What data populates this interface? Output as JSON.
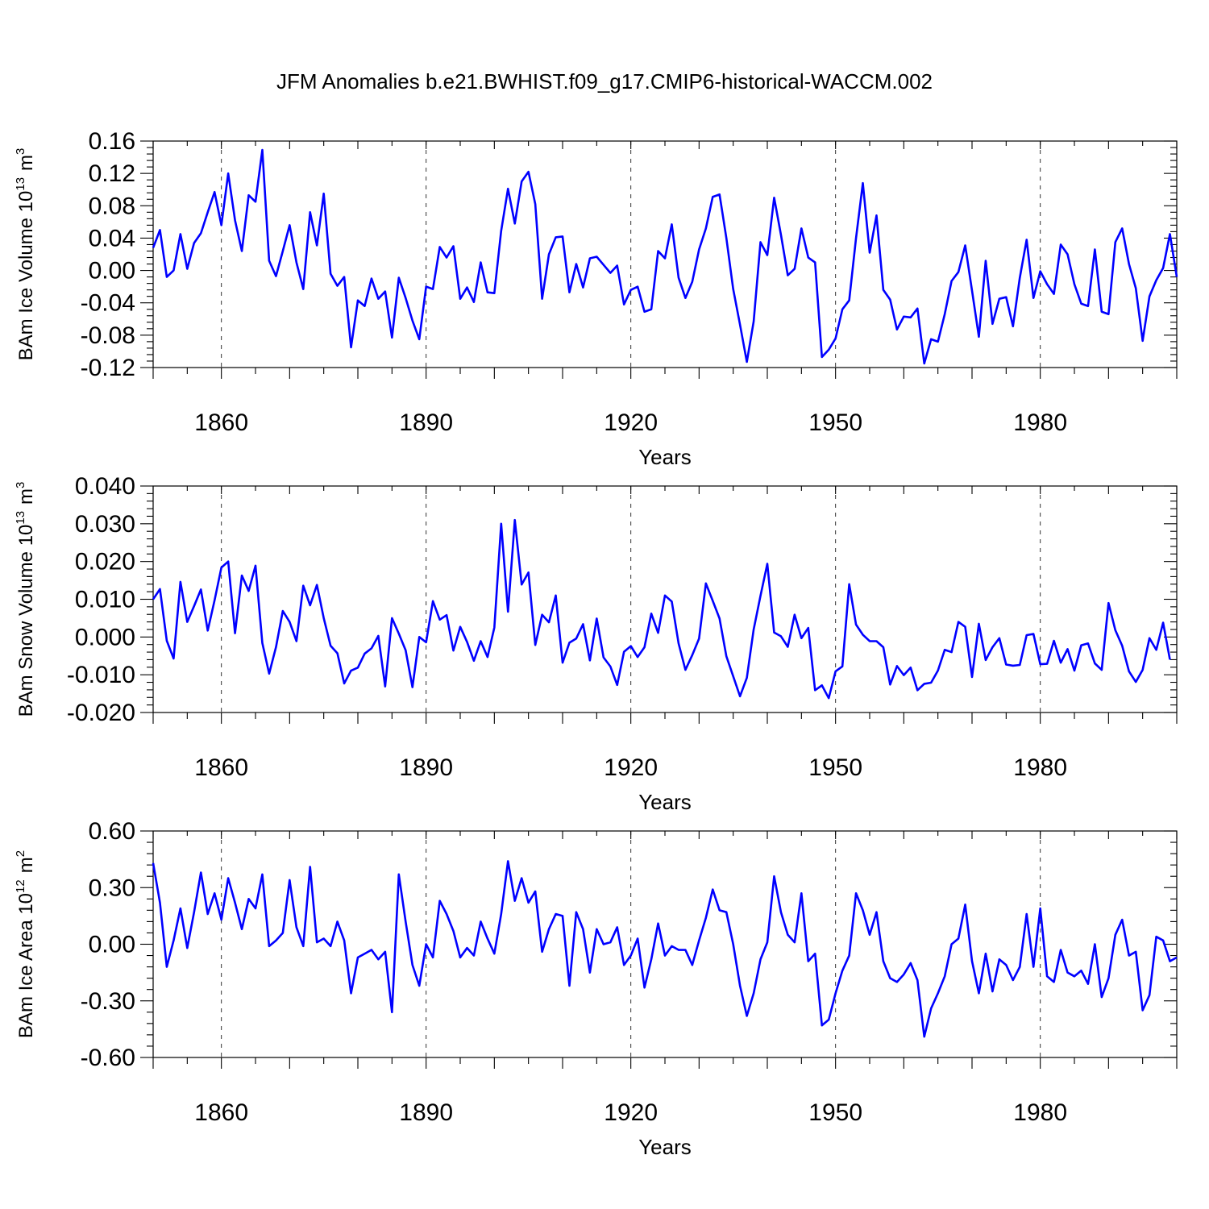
{
  "title": "JFM Anomalies b.e21.BWHIST.f09_g17.CMIP6-historical-WACCM.002",
  "chart_data": [
    {
      "type": "line",
      "ylabel_main": "BAm Ice Volume 10",
      "ylabel_exp": "13",
      "ylabel_unit": "m",
      "ylabel_unit_exp": "3",
      "xlabel": "Years",
      "xlim": [
        1850,
        2000
      ],
      "ylim": [
        -0.12,
        0.16
      ],
      "yticks": [
        0.16,
        0.12,
        0.08,
        0.04,
        0.0,
        -0.04,
        -0.08,
        -0.12
      ],
      "ytick_labels": [
        "0.16",
        "0.12",
        "0.08",
        "0.04",
        "0.00",
        "-0.04",
        "-0.08",
        "-0.12"
      ],
      "xticks": [
        1860,
        1890,
        1920,
        1950,
        1980
      ],
      "xtick_labels": [
        "1860",
        "1890",
        "1920",
        "1950",
        "1980"
      ],
      "x_start": 1850,
      "values": [
        0.028,
        0.05,
        -0.008,
        0.0,
        0.045,
        0.002,
        0.034,
        0.046,
        0.072,
        0.097,
        0.056,
        0.12,
        0.062,
        0.024,
        0.093,
        0.085,
        0.149,
        0.012,
        -0.007,
        0.024,
        0.056,
        0.01,
        -0.023,
        0.072,
        0.031,
        0.095,
        -0.004,
        -0.019,
        -0.008,
        -0.095,
        -0.037,
        -0.044,
        -0.01,
        -0.035,
        -0.026,
        -0.083,
        -0.009,
        -0.034,
        -0.062,
        -0.085,
        -0.02,
        -0.023,
        0.029,
        0.016,
        0.03,
        -0.035,
        -0.021,
        -0.039,
        0.01,
        -0.027,
        -0.028,
        0.049,
        0.101,
        0.058,
        0.11,
        0.122,
        0.082,
        -0.035,
        0.02,
        0.041,
        0.042,
        -0.027,
        0.008,
        -0.021,
        0.015,
        0.017,
        0.007,
        -0.003,
        0.006,
        -0.042,
        -0.024,
        -0.02,
        -0.051,
        -0.048,
        0.024,
        0.015,
        0.057,
        -0.009,
        -0.034,
        -0.014,
        0.026,
        0.052,
        0.091,
        0.094,
        0.04,
        -0.023,
        -0.067,
        -0.113,
        -0.063,
        0.035,
        0.019,
        0.09,
        0.044,
        -0.006,
        0.002,
        0.052,
        0.016,
        0.01,
        -0.107,
        -0.098,
        -0.084,
        -0.048,
        -0.037,
        0.04,
        0.108,
        0.022,
        0.068,
        -0.024,
        -0.036,
        -0.073,
        -0.057,
        -0.058,
        -0.047,
        -0.115,
        -0.085,
        -0.088,
        -0.054,
        -0.013,
        -0.002,
        0.031,
        -0.025,
        -0.082,
        0.012,
        -0.066,
        -0.035,
        -0.033,
        -0.069,
        -0.009,
        0.038,
        -0.034,
        -0.001,
        -0.017,
        -0.029,
        0.032,
        0.02,
        -0.017,
        -0.041,
        -0.044,
        0.026,
        -0.051,
        -0.054,
        0.035,
        0.052,
        0.008,
        -0.022,
        -0.087,
        -0.032,
        -0.012,
        0.003,
        0.045,
        -0.008
      ]
    },
    {
      "type": "line",
      "ylabel_main": "BAm Snow Volume 10",
      "ylabel_exp": "13",
      "ylabel_unit": "m",
      "ylabel_unit_exp": "3",
      "xlabel": "Years",
      "xlim": [
        1850,
        2000
      ],
      "ylim": [
        -0.02,
        0.04
      ],
      "yticks": [
        0.04,
        0.03,
        0.02,
        0.01,
        0.0,
        -0.01,
        -0.02
      ],
      "ytick_labels": [
        "0.040",
        "0.030",
        "0.020",
        "0.010",
        "0.000",
        "-0.010",
        "-0.020"
      ],
      "xticks": [
        1860,
        1890,
        1920,
        1950,
        1980
      ],
      "xtick_labels": [
        "1860",
        "1890",
        "1920",
        "1950",
        "1980"
      ],
      "x_start": 1850,
      "values": [
        0.01,
        0.0127,
        -0.001,
        -0.0057,
        0.0146,
        0.004,
        0.0082,
        0.0126,
        0.0017,
        0.0097,
        0.0184,
        0.02,
        0.001,
        0.0163,
        0.0122,
        0.0189,
        -0.0016,
        -0.0097,
        -0.0027,
        0.0069,
        0.004,
        -0.0011,
        0.0136,
        0.0084,
        0.0138,
        0.005,
        -0.0023,
        -0.0043,
        -0.0123,
        -0.0089,
        -0.0081,
        -0.0044,
        -0.003,
        0.0003,
        -0.0131,
        0.005,
        0.0009,
        -0.0035,
        -0.0133,
        0.0,
        -0.0014,
        0.0095,
        0.0046,
        0.0058,
        -0.0036,
        0.0027,
        -0.0013,
        -0.0063,
        -0.0011,
        -0.0053,
        0.0025,
        0.03,
        0.0067,
        0.031,
        0.0139,
        0.0171,
        -0.0021,
        0.0059,
        0.0039,
        0.011,
        -0.0068,
        -0.0015,
        -0.0004,
        0.0034,
        -0.0062,
        0.0049,
        -0.0054,
        -0.0078,
        -0.0127,
        -0.0039,
        -0.0024,
        -0.0053,
        -0.0027,
        0.0062,
        0.0011,
        0.011,
        0.0094,
        -0.0017,
        -0.0087,
        -0.0048,
        -0.0004,
        0.0142,
        0.0096,
        0.0049,
        -0.0051,
        -0.0104,
        -0.0157,
        -0.0108,
        0.002,
        0.0109,
        0.0194,
        0.0012,
        0.0002,
        -0.0026,
        0.0059,
        -0.0003,
        0.0024,
        -0.0141,
        -0.0128,
        -0.0162,
        -0.0091,
        -0.0078,
        0.014,
        0.0033,
        0.0006,
        -0.0011,
        -0.0011,
        -0.0027,
        -0.0126,
        -0.0077,
        -0.0101,
        -0.0081,
        -0.0141,
        -0.0124,
        -0.0121,
        -0.0089,
        -0.0034,
        -0.004,
        0.004,
        0.0027,
        -0.0106,
        0.0035,
        -0.0061,
        -0.0027,
        -0.0003,
        -0.0073,
        -0.0076,
        -0.0074,
        0.0005,
        0.0008,
        -0.0072,
        -0.0071,
        -0.001,
        -0.0068,
        -0.0032,
        -0.0089,
        -0.0022,
        -0.0017,
        -0.007,
        -0.0087,
        0.009,
        0.0018,
        -0.0023,
        -0.0091,
        -0.0119,
        -0.0087,
        -0.0003,
        -0.0034,
        0.0038,
        -0.006
      ]
    },
    {
      "type": "line",
      "ylabel_main": "BAm Ice Area 10",
      "ylabel_exp": "12",
      "ylabel_unit": "m",
      "ylabel_unit_exp": "2",
      "xlabel": "Years",
      "xlim": [
        1850,
        2000
      ],
      "ylim": [
        -0.6,
        0.6
      ],
      "yticks": [
        0.6,
        0.3,
        0.0,
        -0.3,
        -0.6
      ],
      "ytick_labels": [
        "0.60",
        "0.30",
        "0.00",
        "-0.30",
        "-0.60"
      ],
      "xticks": [
        1860,
        1890,
        1920,
        1950,
        1980
      ],
      "xtick_labels": [
        "1860",
        "1890",
        "1920",
        "1950",
        "1980"
      ],
      "x_start": 1850,
      "values": [
        0.43,
        0.22,
        -0.12,
        0.02,
        0.19,
        -0.02,
        0.17,
        0.38,
        0.16,
        0.27,
        0.13,
        0.35,
        0.22,
        0.08,
        0.24,
        0.19,
        0.37,
        -0.01,
        0.02,
        0.06,
        0.34,
        0.09,
        -0.01,
        0.41,
        0.01,
        0.03,
        -0.01,
        0.12,
        0.02,
        -0.26,
        -0.07,
        -0.05,
        -0.03,
        -0.08,
        -0.04,
        -0.36,
        0.37,
        0.12,
        -0.11,
        -0.22,
        0.0,
        -0.07,
        0.23,
        0.16,
        0.07,
        -0.07,
        -0.02,
        -0.06,
        0.12,
        0.03,
        -0.05,
        0.16,
        0.44,
        0.23,
        0.35,
        0.22,
        0.28,
        -0.04,
        0.08,
        0.16,
        0.15,
        -0.22,
        0.17,
        0.08,
        -0.15,
        0.08,
        0.0,
        0.01,
        0.09,
        -0.11,
        -0.06,
        0.03,
        -0.23,
        -0.08,
        0.11,
        -0.06,
        -0.01,
        -0.03,
        -0.03,
        -0.11,
        0.02,
        0.14,
        0.29,
        0.18,
        0.17,
        0.0,
        -0.22,
        -0.38,
        -0.26,
        -0.08,
        0.01,
        0.36,
        0.17,
        0.05,
        0.01,
        0.27,
        -0.09,
        -0.05,
        -0.43,
        -0.4,
        -0.26,
        -0.14,
        -0.06,
        0.27,
        0.18,
        0.05,
        0.17,
        -0.09,
        -0.18,
        -0.2,
        -0.16,
        -0.1,
        -0.19,
        -0.49,
        -0.34,
        -0.26,
        -0.17,
        0.0,
        0.03,
        0.21,
        -0.09,
        -0.26,
        -0.05,
        -0.25,
        -0.08,
        -0.11,
        -0.19,
        -0.12,
        0.16,
        -0.12,
        0.19,
        -0.17,
        -0.2,
        -0.03,
        -0.15,
        -0.17,
        -0.14,
        -0.21,
        0.0,
        -0.28,
        -0.18,
        0.05,
        0.13,
        -0.06,
        -0.04,
        -0.35,
        -0.27,
        0.04,
        0.02,
        -0.09,
        -0.07
      ]
    }
  ]
}
